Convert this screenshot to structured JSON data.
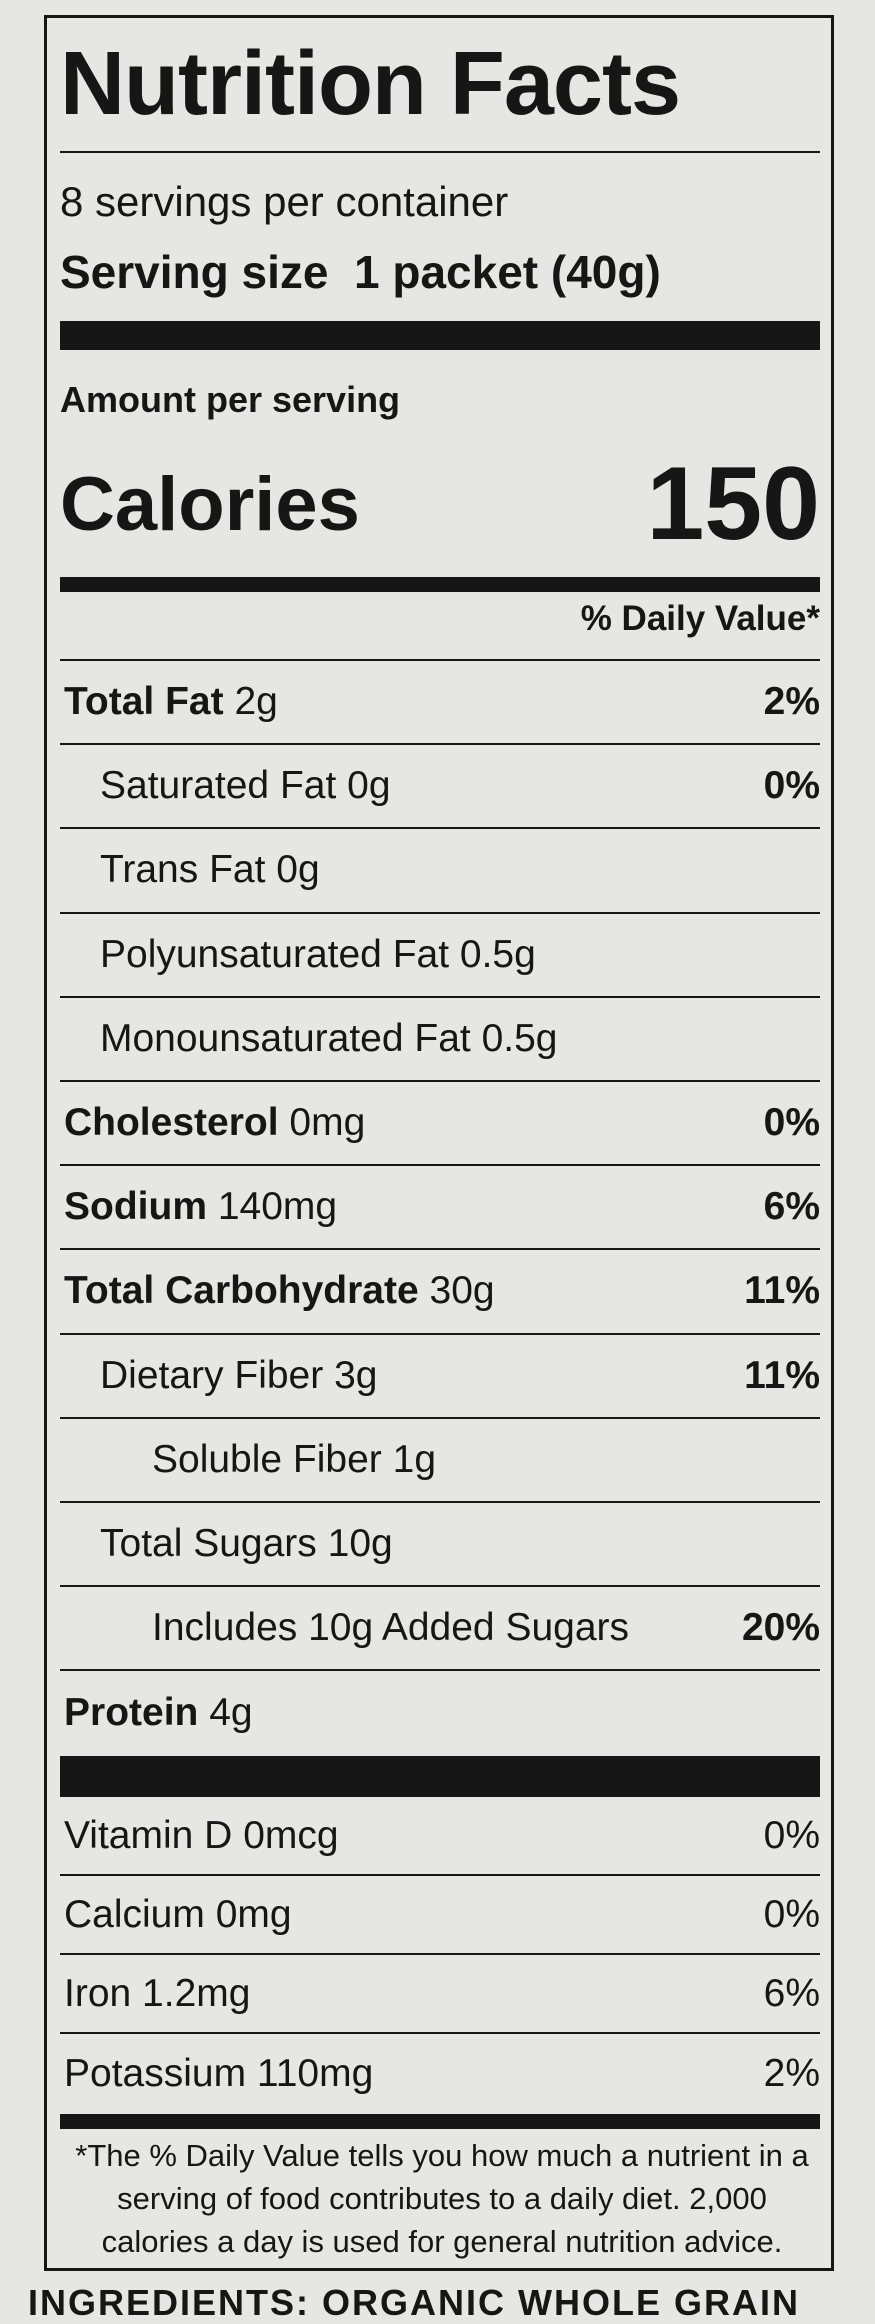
{
  "title": "Nutrition Facts",
  "servings": "8 servings per container",
  "serving_size": {
    "label": "Serving size",
    "value": "1 packet (40g)"
  },
  "amount_per_serving": "Amount per serving",
  "calories": {
    "label": "Calories",
    "value": "150"
  },
  "daily_value_header": "% Daily Value*",
  "nutrients": [
    {
      "name": "Total Fat",
      "amount": "2g",
      "dv": "2%",
      "bold": true,
      "indent": 0
    },
    {
      "name": "Saturated Fat",
      "amount": "0g",
      "dv": "0%",
      "bold": false,
      "indent": 1
    },
    {
      "name": "Trans Fat",
      "amount": "0g",
      "bold": false,
      "indent": 1
    },
    {
      "name": "Polyunsaturated Fat",
      "amount": "0.5g",
      "bold": false,
      "indent": 1
    },
    {
      "name": "Monounsaturated Fat",
      "amount": "0.5g",
      "bold": false,
      "indent": 1
    },
    {
      "name": "Cholesterol",
      "amount": "0mg",
      "dv": "0%",
      "bold": true,
      "indent": 0
    },
    {
      "name": "Sodium",
      "amount": "140mg",
      "dv": "6%",
      "bold": true,
      "indent": 0
    },
    {
      "name": "Total Carbohydrate",
      "amount": "30g",
      "dv": "11%",
      "bold": true,
      "indent": 0
    },
    {
      "name": "Dietary Fiber",
      "amount": "3g",
      "dv": "11%",
      "bold": false,
      "indent": 1
    },
    {
      "name": "Soluble Fiber",
      "amount": "1g",
      "bold": false,
      "indent": 2
    },
    {
      "name": "Total Sugars",
      "amount": "10g",
      "bold": false,
      "indent": 1
    },
    {
      "name": "Includes 10g Added Sugars",
      "dv": "20%",
      "bold": false,
      "indent": 2
    },
    {
      "name": "Protein",
      "amount": "4g",
      "bold": true,
      "indent": 0
    }
  ],
  "vitamins": [
    {
      "name": "Vitamin D",
      "amount": "0mcg",
      "dv": "0%"
    },
    {
      "name": "Calcium",
      "amount": "0mg",
      "dv": "0%"
    },
    {
      "name": "Iron",
      "amount": "1.2mg",
      "dv": "6%"
    },
    {
      "name": "Potassium",
      "amount": "110mg",
      "dv": "2%"
    }
  ],
  "footnote": "*The % Daily Value tells you how much a nutrient in a serving of food contributes to a daily diet. 2,000 calories a day is used for general nutrition advice.",
  "ingredients": "INGREDIENTS: ORGANIC WHOLE GRAIN"
}
